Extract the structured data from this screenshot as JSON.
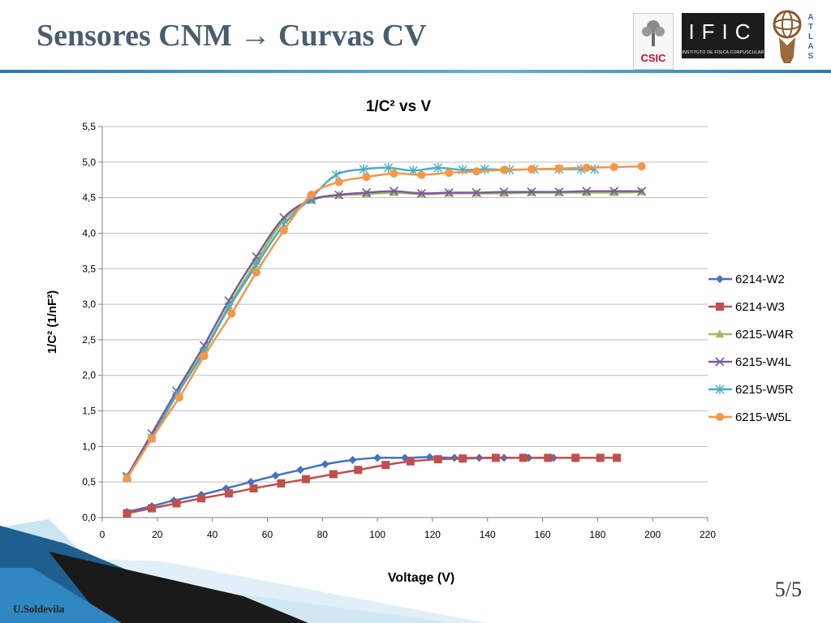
{
  "slide": {
    "title": "Sensores CNM → Curvas CV",
    "page_number": "5/5",
    "author": "U.Soldevila"
  },
  "logos": {
    "csic": "CSIC",
    "ific": "IFIC",
    "ific_subtitle": "INSTITUTO DE FÍSICA CORPUSCULAR",
    "atlas": "ATLAS"
  },
  "chart_data": {
    "type": "line",
    "title": "1/C² vs V",
    "xlabel": "Voltage (V)",
    "ylabel": "1/C² (1/nF²)",
    "xlim": [
      0,
      220
    ],
    "ylim": [
      0,
      5.5
    ],
    "x_ticks": [
      "0",
      "20",
      "40",
      "60",
      "80",
      "100",
      "120",
      "140",
      "160",
      "180",
      "200",
      "220"
    ],
    "y_ticks": [
      "0,0",
      "0,5",
      "1,0",
      "1,5",
      "2,0",
      "2,5",
      "3,0",
      "3,5",
      "4,0",
      "4,5",
      "5,0",
      "5,5"
    ],
    "grid": "horizontal",
    "legend_position": "right",
    "series": [
      {
        "name": "6214-W2",
        "color": "#4472c4",
        "marker": "diamond",
        "x": [
          9,
          18,
          26,
          36,
          45,
          54,
          63,
          72,
          81,
          91,
          100,
          110,
          119,
          128,
          137,
          146,
          155,
          164
        ],
        "y": [
          0.08,
          0.16,
          0.24,
          0.32,
          0.41,
          0.5,
          0.59,
          0.67,
          0.75,
          0.81,
          0.84,
          0.84,
          0.85,
          0.84,
          0.84,
          0.84,
          0.84,
          0.84
        ]
      },
      {
        "name": "6214-W3",
        "color": "#c0504d",
        "marker": "square",
        "x": [
          9,
          18,
          27,
          36,
          46,
          55,
          65,
          74,
          84,
          93,
          103,
          112,
          122,
          131,
          143,
          153,
          162,
          172,
          181,
          187
        ],
        "y": [
          0.06,
          0.13,
          0.2,
          0.27,
          0.34,
          0.41,
          0.48,
          0.54,
          0.61,
          0.67,
          0.74,
          0.79,
          0.82,
          0.83,
          0.84,
          0.84,
          0.84,
          0.84,
          0.84,
          0.84
        ]
      },
      {
        "name": "6215-W4R",
        "color": "#9bbb59",
        "marker": "triangle",
        "x": [
          9,
          18,
          27,
          37,
          46,
          56,
          66,
          76,
          86,
          96,
          106,
          116,
          126,
          136,
          146,
          156,
          166,
          176,
          186,
          196
        ],
        "y": [
          0.57,
          1.15,
          1.75,
          2.35,
          2.98,
          3.6,
          4.18,
          4.46,
          4.53,
          4.55,
          4.57,
          4.55,
          4.56,
          4.56,
          4.56,
          4.57,
          4.57,
          4.57,
          4.57,
          4.58
        ]
      },
      {
        "name": "6215-W4L",
        "color": "#7c5a9e",
        "marker": "x",
        "x": [
          9,
          18,
          27,
          37,
          46,
          56,
          66,
          76,
          86,
          96,
          106,
          116,
          126,
          136,
          146,
          156,
          166,
          176,
          186,
          196
        ],
        "y": [
          0.58,
          1.18,
          1.78,
          2.42,
          3.05,
          3.67,
          4.22,
          4.47,
          4.54,
          4.57,
          4.59,
          4.56,
          4.57,
          4.57,
          4.58,
          4.58,
          4.58,
          4.59,
          4.59,
          4.59
        ]
      },
      {
        "name": "6215-W5R",
        "color": "#4bacc6",
        "marker": "star",
        "x": [
          9,
          18,
          27,
          37,
          46,
          56,
          66,
          76,
          85,
          95,
          104,
          113,
          122,
          131,
          139,
          148,
          157,
          166,
          174,
          179
        ],
        "y": [
          0.56,
          1.12,
          1.72,
          2.33,
          2.95,
          3.55,
          4.12,
          4.5,
          4.82,
          4.9,
          4.92,
          4.88,
          4.92,
          4.89,
          4.9,
          4.89,
          4.9,
          4.9,
          4.9,
          4.9
        ]
      },
      {
        "name": "6215-W5L",
        "color": "#f79646",
        "marker": "circle",
        "x": [
          9,
          18,
          28,
          37,
          47,
          56,
          66,
          76,
          86,
          96,
          106,
          116,
          126,
          136,
          146,
          156,
          166,
          176,
          186,
          196
        ],
        "y": [
          0.55,
          1.11,
          1.69,
          2.27,
          2.87,
          3.45,
          4.04,
          4.54,
          4.72,
          4.79,
          4.84,
          4.82,
          4.85,
          4.87,
          4.89,
          4.9,
          4.91,
          4.92,
          4.93,
          4.94
        ]
      }
    ]
  },
  "colors": {
    "title": "#4a5d6e",
    "accent": "#2a7bb2",
    "gridline": "#bfbfbf"
  }
}
